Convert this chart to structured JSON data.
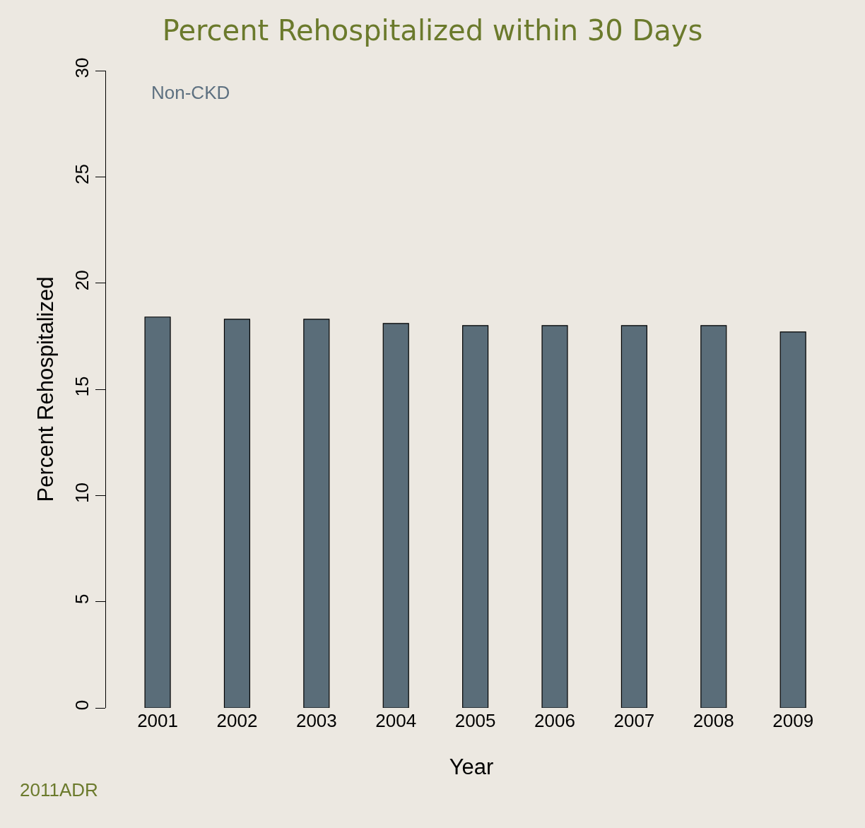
{
  "chart_data": {
    "type": "bar",
    "title": "Percent Rehospitalized within 30 Days",
    "xlabel": "Year",
    "ylabel": "Percent Rehospitalized",
    "categories": [
      "2001",
      "2002",
      "2003",
      "2004",
      "2005",
      "2006",
      "2007",
      "2008",
      "2009"
    ],
    "values": [
      18.4,
      18.3,
      18.3,
      18.1,
      18.0,
      18.0,
      18.0,
      18.0,
      17.7
    ],
    "color": "#5a6d79",
    "ylim": [
      0,
      30
    ],
    "yticks": [
      0,
      5,
      10,
      15,
      20,
      25,
      30
    ],
    "grid": false,
    "annotations": [
      "Non-CKD",
      "2011ADR"
    ]
  }
}
